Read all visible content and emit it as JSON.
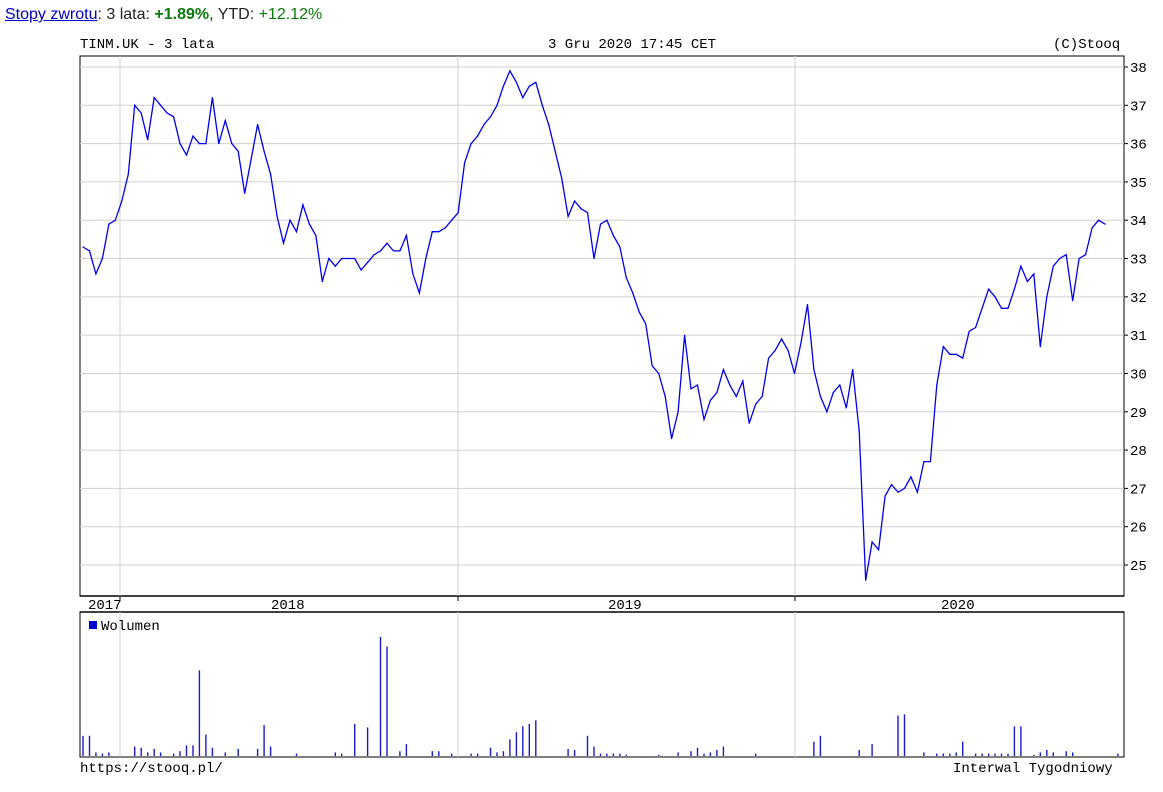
{
  "header": {
    "returns_link": "Stopy zwrotu",
    "period_label": ": 3 lata: ",
    "period_value": "+1.89%",
    "ytd_label": ", YTD: ",
    "ytd_value": "+12.12%"
  },
  "chart_header": {
    "title": "TINM.UK - 3 lata",
    "datetime": "3 Gru 2020 17:45 CET",
    "copyright": "(C)Stooq"
  },
  "footer": {
    "url": "https://stooq.pl/",
    "interval": "Interwal Tygodniowy"
  },
  "colors": {
    "line": "#0000ee",
    "grid": "#d0d0d0",
    "positive": "#0a7a0a",
    "link": "#0000cc"
  },
  "chart_data": {
    "type": "line",
    "title": "TINM.UK - 3 lata",
    "ylim": [
      24.4,
      38.3
    ],
    "y_ticks": [
      25,
      26,
      27,
      28,
      29,
      30,
      31,
      32,
      33,
      34,
      35,
      36,
      37,
      38
    ],
    "x_labels": [
      "2017",
      "2018",
      "2019",
      "2020"
    ],
    "grid": true,
    "series": [
      {
        "values": [
          33.3,
          33.2,
          32.6,
          33.0,
          33.9,
          34.0,
          34.5,
          35.2,
          37.0,
          36.8,
          36.1,
          37.2,
          37.0,
          36.8,
          36.7,
          36.0,
          35.7,
          36.2,
          36.0,
          36.0,
          37.2,
          36.0,
          36.6,
          36.0,
          35.8,
          34.7,
          35.6,
          36.5,
          35.8,
          35.2,
          34.1,
          33.4,
          34.0,
          33.7,
          34.4,
          33.9,
          33.6,
          32.4,
          33.0,
          32.8,
          33.0,
          33.0,
          33.0,
          32.7,
          32.9,
          33.1,
          33.2,
          33.4,
          33.2,
          33.2,
          33.6,
          32.6,
          32.1,
          33.0,
          33.7,
          33.7,
          33.8,
          34.0,
          34.2,
          35.5,
          36.0,
          36.2,
          36.5,
          36.7,
          37.0,
          37.5,
          37.9,
          37.6,
          37.2,
          37.5,
          37.6,
          37.0,
          36.5,
          35.8,
          35.1,
          34.1,
          34.5,
          34.3,
          34.2,
          33.0,
          33.9,
          34.0,
          33.6,
          33.3,
          32.5,
          32.1,
          31.6,
          31.3,
          30.2,
          30.0,
          29.4,
          28.3,
          29.0,
          31.0,
          29.6,
          29.7,
          28.8,
          29.3,
          29.5,
          30.1,
          29.7,
          29.4,
          29.8,
          28.7,
          29.2,
          29.4,
          30.4,
          30.6,
          30.9,
          30.6,
          30.0,
          30.8,
          31.8,
          30.1,
          29.4,
          29.0,
          29.5,
          29.7,
          29.1,
          30.1,
          28.5,
          24.6,
          25.6,
          25.4,
          26.8,
          27.1,
          26.9,
          27.0,
          27.3,
          26.9,
          27.7,
          27.7,
          29.7,
          30.7,
          30.5,
          30.5,
          30.4,
          31.1,
          31.2,
          31.7,
          32.2,
          32.0,
          31.7,
          31.7,
          32.2,
          32.8,
          32.4,
          32.6,
          30.7,
          32.0,
          32.8,
          33.0,
          33.1,
          31.9,
          33.0,
          33.1,
          33.8,
          34.0,
          33.9
        ]
      },
      {
        "name": "Wolumen",
        "values": [
          0.17,
          0.17,
          0.03,
          0.02,
          0.03,
          0,
          0,
          0,
          0.08,
          0.07,
          0.03,
          0.06,
          0.03,
          0,
          0.02,
          0.04,
          0.09,
          0.09,
          0.72,
          0.18,
          0.07,
          0,
          0.03,
          0,
          0.06,
          0,
          0,
          0.06,
          0.26,
          0.08,
          0,
          0,
          0,
          0.02,
          0,
          0,
          0,
          0,
          0,
          0.03,
          0.02,
          0,
          0.27,
          0,
          0.24,
          0,
          1.0,
          0.92,
          0,
          0.04,
          0.1,
          0,
          0,
          0,
          0.04,
          0.04,
          0,
          0.02,
          0,
          0,
          0.02,
          0.02,
          0,
          0.07,
          0.03,
          0.04,
          0.14,
          0.2,
          0.25,
          0.27,
          0.3,
          0,
          0,
          0,
          0,
          0.06,
          0.05,
          0,
          0.17,
          0.08,
          0.02,
          0.02,
          0.02,
          0.02,
          0.01,
          0,
          0,
          0,
          0,
          0.01,
          0,
          0,
          0.03,
          0,
          0.04,
          0.07,
          0.02,
          0.03,
          0.05,
          0.08,
          0,
          0,
          0,
          0,
          0.02,
          0,
          0,
          0,
          0,
          0,
          0,
          0,
          0,
          0.12,
          0.17,
          0,
          0,
          0,
          0,
          0,
          0.05,
          0,
          0.1,
          0,
          0,
          0,
          0.34,
          0.35,
          0,
          0,
          0.03,
          0,
          0.02,
          0.02,
          0.02,
          0.03,
          0.12,
          0,
          0.02,
          0.02,
          0.02,
          0.02,
          0.02,
          0.02,
          0.25,
          0.25,
          0,
          0.01,
          0.03,
          0.05,
          0.03,
          0,
          0.04,
          0.03,
          0,
          0,
          0,
          0,
          0,
          0,
          0.02,
          0
        ]
      }
    ]
  }
}
